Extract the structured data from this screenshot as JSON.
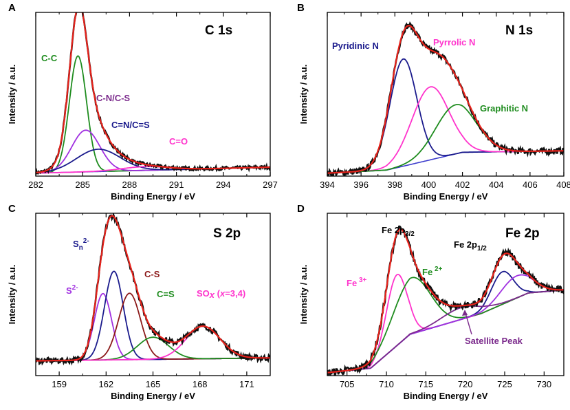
{
  "chart_data": [
    {
      "type": "line",
      "panel": "A",
      "title": "C 1s",
      "xlabel": "Binding Energy / eV",
      "ylabel": "Intensity / a.u.",
      "xlim": [
        282,
        297
      ],
      "xticks": [
        "282",
        "285",
        "288",
        "291",
        "294",
        "297"
      ],
      "ylim": [
        0,
        1.1
      ],
      "baseline": [
        [
          282,
          0.02
        ],
        [
          297,
          0.06
        ]
      ],
      "raw_noise": 0.012,
      "components": [
        {
          "name": "C-C",
          "center": 284.7,
          "height": 0.78,
          "width": 0.55,
          "color": "#1e8c1e"
        },
        {
          "name": "C-N/C-S",
          "center": 285.2,
          "height": 0.28,
          "width": 0.9,
          "color": "#a030e0"
        },
        {
          "name": "C=N/C=S",
          "center": 286.0,
          "height": 0.15,
          "width": 1.4,
          "color": "#1a1a8c"
        },
        {
          "name": "C=O",
          "center": 289.0,
          "height": 0.025,
          "width": 1.5,
          "color": "#ff33cc"
        }
      ],
      "fit_color": "#e8221b",
      "annotations": [
        {
          "text": "C-C",
          "color": "#1e8c1e"
        },
        {
          "text": "C-N/C-S",
          "color": "#7b2a8c"
        },
        {
          "text": "C=N/C=S",
          "color": "#1a1a8c"
        },
        {
          "text": "C=O",
          "color": "#ff33cc"
        }
      ]
    },
    {
      "type": "line",
      "panel": "B",
      "title": "N 1s",
      "xlabel": "Binding Energy / eV",
      "ylabel": "Intensity / a.u.",
      "xlim": [
        394,
        408
      ],
      "xticks": [
        "394",
        "396",
        "398",
        "400",
        "402",
        "404",
        "406",
        "408"
      ],
      "ylim": [
        0,
        1.1
      ],
      "baseline": [
        [
          394,
          0.02
        ],
        [
          397.5,
          0.04
        ],
        [
          402,
          0.16
        ],
        [
          408,
          0.17
        ]
      ],
      "raw_noise": 0.02,
      "components": [
        {
          "name": "Pyridinic N",
          "center": 398.5,
          "height": 0.72,
          "width": 0.8,
          "color": "#1a1a8c"
        },
        {
          "name": "Pyrrolic N",
          "center": 400.1,
          "height": 0.49,
          "width": 1.1,
          "color": "#ff33cc"
        },
        {
          "name": "Graphitic N",
          "center": 401.6,
          "height": 0.33,
          "width": 1.2,
          "color": "#1e8c1e"
        }
      ],
      "fit_color": "#e8221b",
      "annotations": [
        {
          "text": "Pyridinic N",
          "color": "#1a1a8c"
        },
        {
          "text": "Pyrrolic N",
          "color": "#ff33cc"
        },
        {
          "text": "Graphitic N",
          "color": "#1e8c1e"
        }
      ]
    },
    {
      "type": "line",
      "panel": "C",
      "title": "S 2p",
      "xlabel": "Binding Energy / eV",
      "ylabel": "Intensity / a.u.",
      "xlim": [
        157.5,
        172.5
      ],
      "xticks": [
        "159",
        "162",
        "165",
        "168",
        "171"
      ],
      "xtick_values": [
        159,
        162,
        165,
        168,
        171
      ],
      "ylim": [
        0,
        1.1
      ],
      "baseline": [
        [
          157.5,
          0.1
        ],
        [
          172.5,
          0.12
        ]
      ],
      "raw_noise": 0.02,
      "components": [
        {
          "name": "S2-",
          "center": 161.8,
          "height": 0.45,
          "width": 0.55,
          "color": "#a030e0"
        },
        {
          "name": "Sn2-",
          "center": 162.5,
          "height": 0.6,
          "width": 0.6,
          "color": "#1a1a8c"
        },
        {
          "name": "C-S",
          "center": 163.5,
          "height": 0.45,
          "width": 0.7,
          "color": "#8c1a1a"
        },
        {
          "name": "C=S",
          "center": 165.0,
          "height": 0.15,
          "width": 1.0,
          "color": "#1e8c1e"
        },
        {
          "name": "SOx",
          "center": 168.2,
          "height": 0.22,
          "width": 1.1,
          "color": "#ff33cc"
        }
      ],
      "fit_color": "#e8221b",
      "annotations": [
        {
          "text": "S",
          "sup": "2-",
          "color": "#a030e0"
        },
        {
          "text": "S",
          "sub": "n",
          "sup": "2-",
          "color": "#1a1a8c"
        },
        {
          "text": "C-S",
          "color": "#8c1a1a"
        },
        {
          "text": "C=S",
          "color": "#1e8c1e"
        },
        {
          "text": "SO",
          "italic1": "x",
          "mid": " (",
          "italic2": "x",
          "tail": "=3,4)",
          "color": "#ff33cc"
        }
      ]
    },
    {
      "type": "line",
      "panel": "D",
      "title": "Fe 2p",
      "xlabel": "Binding Energy / eV",
      "ylabel": "Intensity / a.u.",
      "xlim": [
        702.5,
        732.5
      ],
      "xticks": [
        "705",
        "710",
        "715",
        "720",
        "725",
        "730"
      ],
      "xtick_values": [
        705,
        710,
        715,
        720,
        725,
        730
      ],
      "ylim": [
        0,
        1.1
      ],
      "baseline": [
        [
          702.5,
          0.02
        ],
        [
          708,
          0.05
        ],
        [
          713,
          0.28
        ],
        [
          722,
          0.42
        ],
        [
          728,
          0.56
        ],
        [
          732.5,
          0.58
        ]
      ],
      "raw_noise": 0.025,
      "components": [
        {
          "name": "Fe 3+",
          "center": 711.3,
          "height": 0.48,
          "width": 1.3,
          "color": "#ff33cc"
        },
        {
          "name": "Fe 2+",
          "center": 713.2,
          "height": 0.38,
          "width": 2.4,
          "color": "#1e8c1e"
        },
        {
          "name": "Fe 2p1/2 (Fe3+)",
          "center": 724.7,
          "height": 0.22,
          "width": 1.4,
          "color": "#1a1a8c"
        },
        {
          "name": "Fe 2p1/2 (Fe2+)",
          "center": 726.5,
          "height": 0.15,
          "width": 2.0,
          "color": "#a030e0"
        },
        {
          "name": "Satellite Peak",
          "center": 719.5,
          "height": 0.08,
          "width": 2.5,
          "color": "#7b2a8c"
        }
      ],
      "fit_color": "#e8221b",
      "annotations": [
        {
          "text": "Fe 2p",
          "sub": "3/2",
          "color": "#000000"
        },
        {
          "text": "Fe 2p",
          "sub": "1/2",
          "color": "#000000"
        },
        {
          "text": "Fe",
          "sup": " 3+",
          "color": "#ff33cc"
        },
        {
          "text": "Fe",
          "sup": " 2+",
          "color": "#1e8c1e"
        },
        {
          "text": "Satellite Peak",
          "color": "#7b2a8c"
        }
      ]
    }
  ],
  "colors": {
    "raw": "#111111",
    "background": "#ffffff"
  }
}
